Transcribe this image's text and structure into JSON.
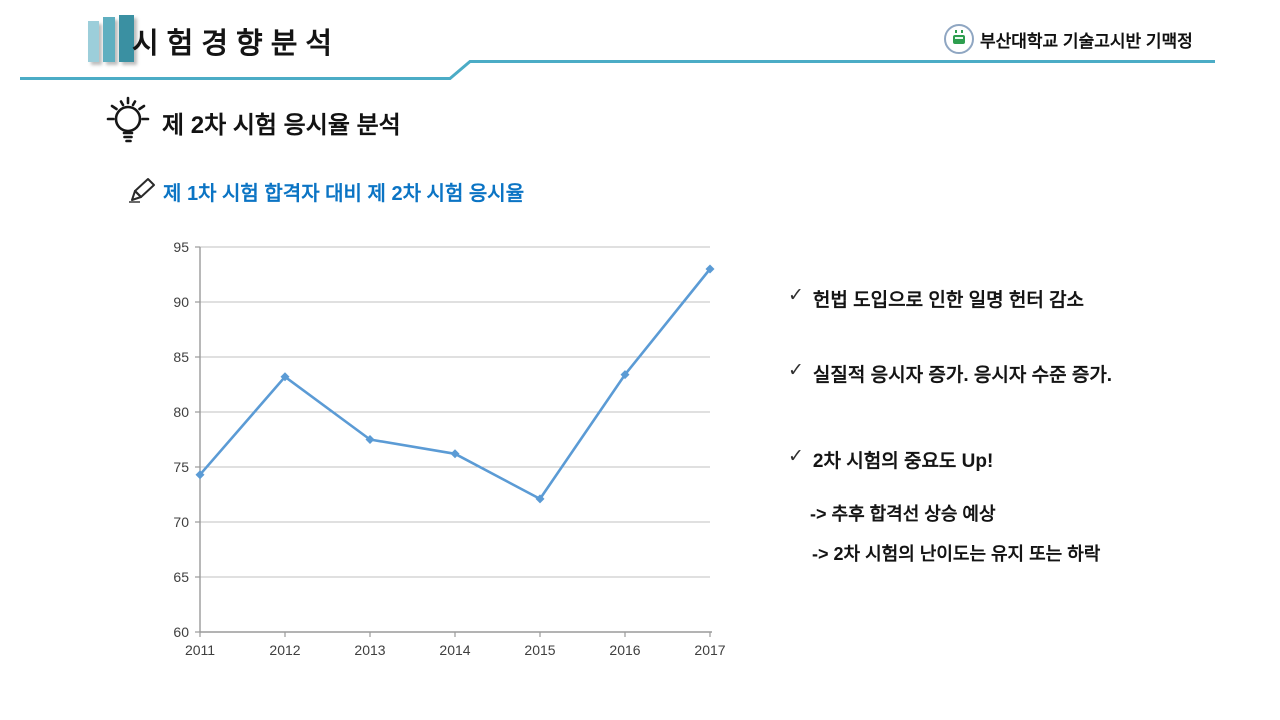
{
  "header": {
    "title": "시험경향분석",
    "logo_text": "부산대학교 기술고시반 기맥정",
    "accent_color": "#4BACC6",
    "bar_colors": [
      "#9CCEDA",
      "#5FAFC0",
      "#3A90A2"
    ]
  },
  "section": {
    "title": "제 2차 시험 응시율 분석"
  },
  "subsection": {
    "title": "제 1차 시험 합격자 대비 제 2차 시험 응시율",
    "color": "#0B74C4"
  },
  "icons": {
    "check": "✓"
  },
  "notes": [
    {
      "text": "헌법 도입으로 인한 일명 헌터 감소"
    },
    {
      "text": "실질적 응시자 증가. 응시자 수준 증가."
    },
    {
      "text": "2차 시험의 중요도 Up!",
      "subs": [
        "-> 추후 합격선 상승 예상",
        "-> 2차 시험의 난이도는 유지 또는 하락"
      ]
    }
  ],
  "chart_data": {
    "type": "line",
    "title": "",
    "categories": [
      "2011",
      "2012",
      "2013",
      "2014",
      "2015",
      "2016",
      "2017"
    ],
    "values": [
      74.3,
      83.2,
      77.5,
      76.2,
      72.1,
      83.4,
      93.0
    ],
    "xlabel": "",
    "ylabel": "",
    "ylim": [
      60,
      95
    ],
    "yticks": [
      60,
      65,
      70,
      75,
      80,
      85,
      90,
      95
    ],
    "grid": true,
    "legend": false,
    "marker": "diamond",
    "colors": {
      "line": "#5B9BD5",
      "grid": "#C2C2C2",
      "axis": "#9A9A9A",
      "tick_label": "#3F3F3F"
    }
  }
}
